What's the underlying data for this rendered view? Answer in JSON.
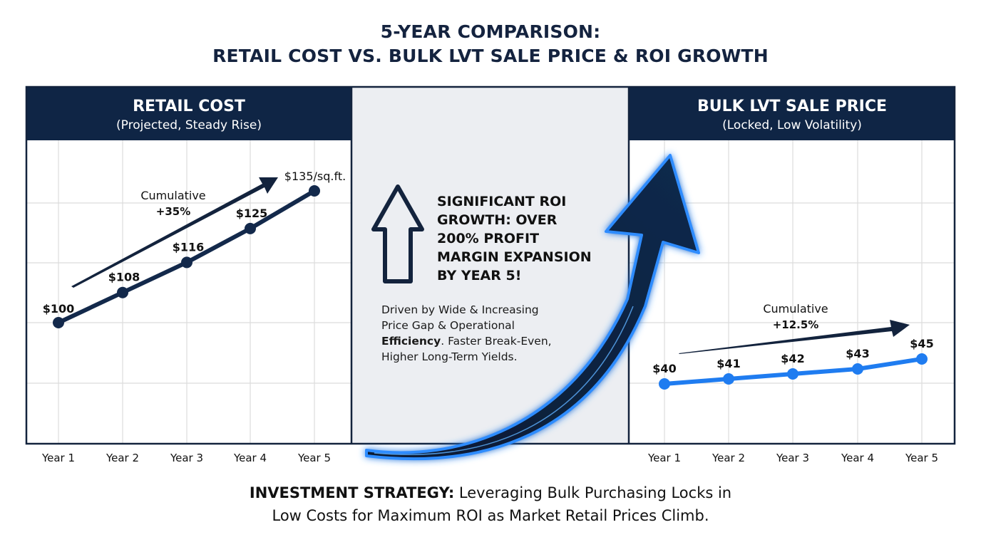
{
  "title": {
    "line1": "5-YEAR COMPARISON:",
    "line2": "RETAIL COST VS. BULK LVT SALE PRICE & ROI GROWTH"
  },
  "colors": {
    "navy": "#0f2545",
    "blue": "#1f7cf0",
    "middle_bg": "#eceef2",
    "grid": "#dcdcdc"
  },
  "middle": {
    "icon": "outline-up-arrow-icon",
    "headline_lines": [
      "SIGNIFICANT ROI",
      "GROWTH: OVER",
      "200% PROFIT",
      "MARGIN EXPANSION",
      "BY YEAR 5!"
    ],
    "body_lines": [
      {
        "text": "Driven by Wide & Increasing"
      },
      {
        "text": "Price Gap & Operational"
      },
      {
        "bold": "Efficiency",
        "text": ". Faster Break-Even,"
      },
      {
        "text": "Higher Long-Term Yields."
      }
    ],
    "swoosh_icon": "glowing-curved-arrow-icon"
  },
  "footer": {
    "bold": "INVESTMENT STRATEGY:",
    "line1_rest": " Leveraging Bulk Purchasing Locks in",
    "line2": "Low Costs for Maximum ROI as Market Retail Prices Climb."
  },
  "chart_data": [
    {
      "type": "line",
      "title": "RETAIL COST",
      "subtitle": "(Projected, Steady Rise)",
      "categories": [
        "Year 1",
        "Year 2",
        "Year 3",
        "Year 4",
        "Year 5"
      ],
      "values": [
        100,
        108,
        116,
        125,
        135
      ],
      "data_labels": [
        "$100",
        "$108",
        "$116",
        "$125",
        "$135/sq.ft."
      ],
      "annotation": {
        "line1": "Cumulative",
        "line2": "+35%"
      },
      "grid": true,
      "series_color": "#13294b"
    },
    {
      "type": "line",
      "title": "BULK LVT SALE PRICE",
      "subtitle": "(Locked, Low Volatility)",
      "categories": [
        "Year 1",
        "Year 2",
        "Year 3",
        "Year 4",
        "Year 5"
      ],
      "values": [
        40,
        41,
        42,
        43,
        45
      ],
      "data_labels": [
        "$40",
        "$41",
        "$42",
        "$43",
        "$45"
      ],
      "annotation": {
        "line1": "Cumulative",
        "line2": "+12.5%"
      },
      "grid": true,
      "series_color": "#1f7cf0"
    }
  ]
}
